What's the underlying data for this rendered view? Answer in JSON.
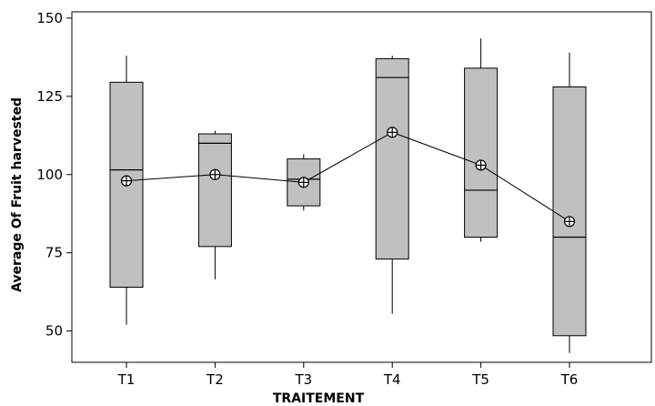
{
  "chart_data": {
    "type": "box",
    "xlabel": "TRAITEMENT",
    "ylabel": "Average Of Fruit  harvested",
    "categories": [
      "T1",
      "T2",
      "T3",
      "T4",
      "T5",
      "T6"
    ],
    "ylim": [
      40,
      152
    ],
    "yticks": [
      50,
      75,
      100,
      125,
      150
    ],
    "grid": false,
    "legend": "none",
    "box_fill": "#c0c0c0",
    "boxes": [
      {
        "category": "T1",
        "whisker_low": 52,
        "q1": 64,
        "median": 101.5,
        "q3": 129.5,
        "whisker_high": 138,
        "mean": 98
      },
      {
        "category": "T2",
        "whisker_low": 66.5,
        "q1": 77,
        "median": 110,
        "q3": 113,
        "whisker_high": 114,
        "mean": 100
      },
      {
        "category": "T3",
        "whisker_low": 88.5,
        "q1": 90,
        "median": 98.5,
        "q3": 105,
        "whisker_high": 106.5,
        "mean": 97.5
      },
      {
        "category": "T4",
        "whisker_low": 55.5,
        "q1": 73,
        "median": 131,
        "q3": 137,
        "whisker_high": 138,
        "mean": 113.5
      },
      {
        "category": "T5",
        "whisker_low": 78.5,
        "q1": 80,
        "median": 95,
        "q3": 134,
        "whisker_high": 143.5,
        "mean": 103
      },
      {
        "category": "T6",
        "whisker_low": 43,
        "q1": 48.5,
        "median": 80,
        "q3": 128,
        "whisker_high": 139,
        "mean": 85
      }
    ]
  }
}
